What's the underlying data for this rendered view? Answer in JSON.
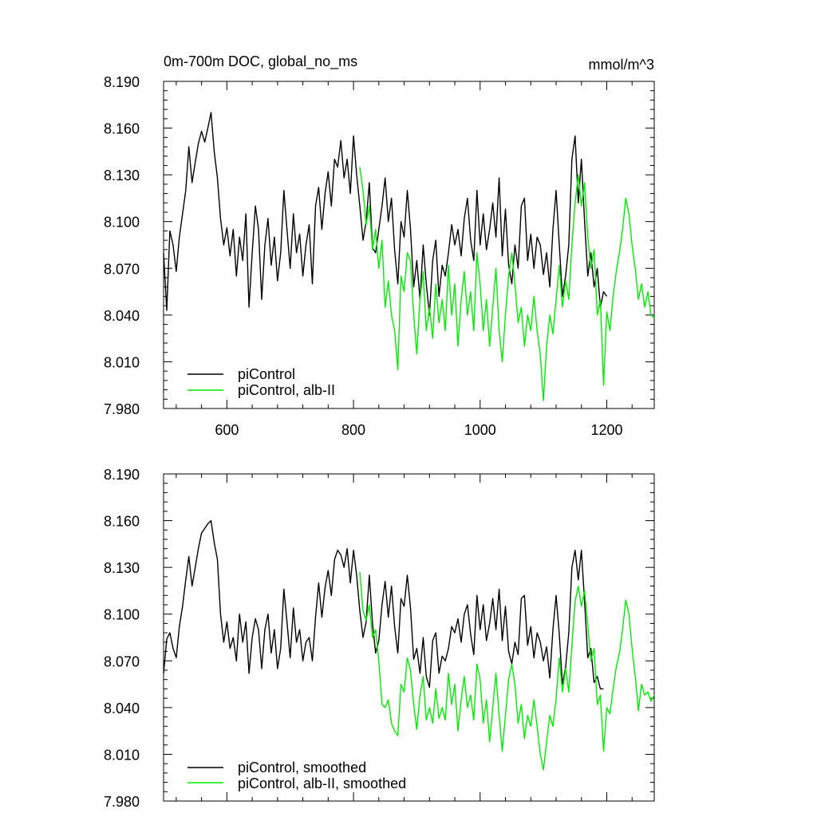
{
  "figure": {
    "title_left": "0m-700m DOC, global_no_ms",
    "title_right": "mmol/m^3"
  },
  "colors": {
    "piControl": "#000000",
    "alb_II": "#00ee00"
  },
  "chart_data": [
    {
      "type": "line",
      "panel": "top",
      "xlim": [
        500,
        1275
      ],
      "ylim": [
        7.98,
        8.19
      ],
      "x_ticks": [
        600,
        800,
        1000,
        1200
      ],
      "x_tick_labels": [
        "600",
        "800",
        "1000",
        "1200"
      ],
      "y_ticks": [
        7.98,
        8.01,
        8.04,
        8.07,
        8.1,
        8.13,
        8.16,
        8.19
      ],
      "y_tick_labels": [
        "7.980",
        "8.010",
        "8.040",
        "8.070",
        "8.100",
        "8.130",
        "8.160",
        "8.190"
      ],
      "legend_location": "lower-left",
      "series": [
        {
          "name": "piControl",
          "color": "#000000",
          "x": [
            500,
            505,
            510,
            515,
            520,
            525,
            530,
            535,
            540,
            545,
            550,
            555,
            560,
            565,
            570,
            575,
            580,
            585,
            590,
            595,
            600,
            605,
            610,
            615,
            620,
            625,
            630,
            635,
            640,
            645,
            650,
            655,
            660,
            665,
            670,
            675,
            680,
            685,
            690,
            695,
            700,
            705,
            710,
            715,
            720,
            725,
            730,
            735,
            740,
            745,
            750,
            755,
            760,
            765,
            770,
            775,
            780,
            785,
            790,
            795,
            800,
            805,
            810,
            815,
            820,
            825,
            830,
            835,
            840,
            845,
            850,
            855,
            860,
            865,
            870,
            875,
            880,
            885,
            890,
            895,
            900,
            905,
            910,
            915,
            920,
            925,
            930,
            935,
            940,
            945,
            950,
            955,
            960,
            965,
            970,
            975,
            980,
            985,
            990,
            995,
            1000,
            1005,
            1010,
            1015,
            1020,
            1025,
            1030,
            1035,
            1040,
            1045,
            1050,
            1055,
            1060,
            1065,
            1070,
            1075,
            1080,
            1085,
            1090,
            1095,
            1100,
            1105,
            1110,
            1115,
            1120,
            1125,
            1130,
            1135,
            1140,
            1145,
            1150,
            1155,
            1160,
            1165,
            1170,
            1175,
            1180,
            1185,
            1190,
            1195,
            1200
          ],
          "y": [
            8.08,
            8.043,
            8.094,
            8.085,
            8.068,
            8.09,
            8.105,
            8.12,
            8.148,
            8.125,
            8.138,
            8.15,
            8.158,
            8.151,
            8.16,
            8.17,
            8.145,
            8.128,
            8.102,
            8.085,
            8.096,
            8.078,
            8.095,
            8.065,
            8.09,
            8.075,
            8.105,
            8.045,
            8.08,
            8.11,
            8.095,
            8.05,
            8.085,
            8.102,
            8.072,
            8.09,
            8.062,
            8.08,
            8.12,
            8.095,
            8.07,
            8.105,
            8.08,
            8.092,
            8.065,
            8.085,
            8.098,
            8.06,
            8.11,
            8.122,
            8.095,
            8.118,
            8.132,
            8.11,
            8.14,
            8.135,
            8.152,
            8.128,
            8.14,
            8.118,
            8.155,
            8.13,
            8.11,
            8.088,
            8.1,
            8.125,
            8.083,
            8.08,
            8.095,
            8.11,
            8.128,
            8.1,
            8.115,
            8.082,
            8.06,
            8.1,
            8.09,
            8.12,
            8.095,
            8.058,
            8.075,
            8.05,
            8.085,
            8.06,
            8.04,
            8.075,
            8.088,
            8.052,
            8.072,
            8.065,
            8.08,
            8.098,
            8.085,
            8.095,
            8.078,
            8.102,
            8.115,
            8.088,
            8.075,
            8.12,
            8.085,
            8.105,
            8.082,
            8.095,
            8.112,
            8.09,
            8.128,
            8.078,
            8.108,
            8.072,
            8.06,
            8.085,
            8.07,
            8.11,
            8.115,
            8.075,
            8.092,
            8.07,
            8.09,
            8.085,
            8.066,
            8.08,
            8.058,
            8.095,
            8.12,
            8.085,
            8.052,
            8.065,
            8.085,
            8.14,
            8.155,
            8.112,
            8.14,
            8.1,
            8.065,
            8.08,
            8.058,
            8.07,
            8.045,
            8.055,
            8.052
          ]
        },
        {
          "name": "piControl, alb-II",
          "color": "#00ee00",
          "x": [
            810,
            815,
            820,
            825,
            830,
            835,
            840,
            845,
            850,
            855,
            860,
            865,
            870,
            875,
            880,
            885,
            890,
            895,
            900,
            905,
            910,
            915,
            920,
            925,
            930,
            935,
            940,
            945,
            950,
            955,
            960,
            965,
            970,
            975,
            980,
            985,
            990,
            995,
            1000,
            1005,
            1010,
            1015,
            1020,
            1025,
            1030,
            1035,
            1040,
            1045,
            1050,
            1055,
            1060,
            1065,
            1070,
            1075,
            1080,
            1085,
            1090,
            1095,
            1100,
            1105,
            1110,
            1115,
            1120,
            1125,
            1130,
            1135,
            1140,
            1145,
            1150,
            1155,
            1160,
            1165,
            1170,
            1175,
            1180,
            1185,
            1190,
            1195,
            1200,
            1205,
            1210,
            1215,
            1220,
            1225,
            1230,
            1235,
            1240,
            1245,
            1250,
            1255,
            1260,
            1265,
            1270,
            1275
          ],
          "y": [
            8.135,
            8.12,
            8.098,
            8.11,
            8.082,
            8.095,
            8.07,
            8.088,
            8.045,
            8.062,
            8.04,
            8.03,
            8.005,
            8.065,
            8.055,
            8.08,
            8.075,
            8.04,
            8.015,
            8.05,
            8.068,
            8.03,
            8.045,
            8.025,
            8.06,
            8.035,
            8.05,
            8.03,
            8.072,
            8.04,
            8.06,
            8.02,
            8.05,
            8.068,
            8.04,
            8.055,
            8.03,
            8.08,
            8.06,
            8.03,
            8.05,
            8.02,
            8.045,
            8.07,
            8.03,
            8.01,
            8.04,
            8.065,
            8.08,
            8.06,
            8.035,
            8.045,
            8.02,
            8.04,
            8.03,
            8.052,
            8.03,
            8.015,
            7.985,
            8.02,
            8.04,
            8.028,
            8.05,
            8.072,
            8.045,
            8.062,
            8.05,
            8.085,
            8.112,
            8.13,
            8.11,
            8.125,
            8.09,
            8.07,
            8.082,
            8.04,
            8.05,
            7.995,
            8.042,
            8.03,
            8.052,
            8.068,
            8.08,
            8.095,
            8.115,
            8.105,
            8.085,
            8.07,
            8.05,
            8.06,
            8.045,
            8.055,
            8.04,
            8.038
          ]
        }
      ],
      "legend": [
        "piControl",
        "piControl, alb-II"
      ]
    },
    {
      "type": "line",
      "panel": "bottom",
      "xlim": [
        500,
        1275
      ],
      "ylim": [
        7.98,
        8.19
      ],
      "x_ticks": [
        600,
        800,
        1000,
        1200
      ],
      "y_ticks": [
        7.98,
        8.01,
        8.04,
        8.07,
        8.1,
        8.13,
        8.16,
        8.19
      ],
      "y_tick_labels": [
        "7.980",
        "8.010",
        "8.040",
        "8.070",
        "8.100",
        "8.130",
        "8.160",
        "8.190"
      ],
      "legend_location": "lower-left",
      "series": [
        {
          "name": "piControl, smoothed",
          "color": "#000000",
          "x": [
            500,
            505,
            510,
            515,
            520,
            525,
            530,
            535,
            540,
            545,
            550,
            555,
            560,
            565,
            570,
            575,
            580,
            585,
            590,
            595,
            600,
            605,
            610,
            615,
            620,
            625,
            630,
            635,
            640,
            645,
            650,
            655,
            660,
            665,
            670,
            675,
            680,
            685,
            690,
            695,
            700,
            705,
            710,
            715,
            720,
            725,
            730,
            735,
            740,
            745,
            750,
            755,
            760,
            765,
            770,
            775,
            780,
            785,
            790,
            795,
            800,
            805,
            810,
            815,
            820,
            825,
            830,
            835,
            840,
            845,
            850,
            855,
            860,
            865,
            870,
            875,
            880,
            885,
            890,
            895,
            900,
            905,
            910,
            915,
            920,
            925,
            930,
            935,
            940,
            945,
            950,
            955,
            960,
            965,
            970,
            975,
            980,
            985,
            990,
            995,
            1000,
            1005,
            1010,
            1015,
            1020,
            1025,
            1030,
            1035,
            1040,
            1045,
            1050,
            1055,
            1060,
            1065,
            1070,
            1075,
            1080,
            1085,
            1090,
            1095,
            1100,
            1105,
            1110,
            1115,
            1120,
            1125,
            1130,
            1135,
            1140,
            1145,
            1150,
            1155,
            1160,
            1165,
            1170,
            1175,
            1180,
            1185,
            1190,
            1195
          ],
          "y": [
            8.062,
            8.084,
            8.088,
            8.078,
            8.072,
            8.092,
            8.105,
            8.122,
            8.137,
            8.118,
            8.13,
            8.142,
            8.152,
            8.155,
            8.158,
            8.16,
            8.146,
            8.135,
            8.1,
            8.082,
            8.095,
            8.078,
            8.085,
            8.07,
            8.1,
            8.082,
            8.095,
            8.062,
            8.085,
            8.097,
            8.09,
            8.065,
            8.09,
            8.1,
            8.075,
            8.09,
            8.065,
            8.078,
            8.116,
            8.095,
            8.072,
            8.104,
            8.082,
            8.09,
            8.07,
            8.082,
            8.085,
            8.07,
            8.098,
            8.12,
            8.098,
            8.117,
            8.128,
            8.112,
            8.135,
            8.141,
            8.138,
            8.13,
            8.142,
            8.12,
            8.141,
            8.125,
            8.102,
            8.085,
            8.095,
            8.125,
            8.094,
            8.075,
            8.083,
            8.106,
            8.121,
            8.098,
            8.118,
            8.092,
            8.075,
            8.11,
            8.105,
            8.125,
            8.104,
            8.071,
            8.078,
            8.062,
            8.085,
            8.06,
            8.053,
            8.083,
            8.088,
            8.062,
            8.073,
            8.07,
            8.078,
            8.092,
            8.088,
            8.097,
            8.082,
            8.1,
            8.106,
            8.087,
            8.074,
            8.112,
            8.09,
            8.106,
            8.083,
            8.094,
            8.11,
            8.09,
            8.116,
            8.083,
            8.105,
            8.076,
            8.068,
            8.082,
            8.074,
            8.11,
            8.112,
            8.08,
            8.092,
            8.072,
            8.088,
            8.082,
            8.07,
            8.079,
            8.059,
            8.09,
            8.112,
            8.087,
            8.055,
            8.066,
            8.088,
            8.13,
            8.141,
            8.122,
            8.141,
            8.108,
            8.072,
            8.078,
            8.056,
            8.06,
            8.052,
            8.052
          ]
        },
        {
          "name": "piControl, alb-II, smoothed",
          "color": "#00ee00",
          "x": [
            810,
            815,
            820,
            825,
            830,
            835,
            840,
            845,
            850,
            855,
            860,
            865,
            870,
            875,
            880,
            885,
            890,
            895,
            900,
            905,
            910,
            915,
            920,
            925,
            930,
            935,
            940,
            945,
            950,
            955,
            960,
            965,
            970,
            975,
            980,
            985,
            990,
            995,
            1000,
            1005,
            1010,
            1015,
            1020,
            1025,
            1030,
            1035,
            1040,
            1045,
            1050,
            1055,
            1060,
            1065,
            1070,
            1075,
            1080,
            1085,
            1090,
            1095,
            1100,
            1105,
            1110,
            1115,
            1120,
            1125,
            1130,
            1135,
            1140,
            1145,
            1150,
            1155,
            1160,
            1165,
            1170,
            1175,
            1180,
            1185,
            1190,
            1195,
            1200,
            1205,
            1210,
            1215,
            1220,
            1225,
            1230,
            1235,
            1240,
            1245,
            1250,
            1255,
            1260,
            1265,
            1270,
            1275
          ],
          "y": [
            8.127,
            8.102,
            8.096,
            8.106,
            8.085,
            8.09,
            8.07,
            8.042,
            8.04,
            8.045,
            8.03,
            8.025,
            8.022,
            8.055,
            8.05,
            8.072,
            8.064,
            8.042,
            8.026,
            8.048,
            8.06,
            8.032,
            8.04,
            8.03,
            8.052,
            8.033,
            8.04,
            8.032,
            8.062,
            8.042,
            8.055,
            8.025,
            8.045,
            8.06,
            8.04,
            8.048,
            8.032,
            8.068,
            8.058,
            8.03,
            8.045,
            8.018,
            8.04,
            8.062,
            8.035,
            8.012,
            8.035,
            8.058,
            8.068,
            8.055,
            8.03,
            8.042,
            8.02,
            8.035,
            8.028,
            8.045,
            8.028,
            8.01,
            8.0,
            8.018,
            8.035,
            8.028,
            8.046,
            8.072,
            8.05,
            8.065,
            8.05,
            8.08,
            8.108,
            8.118,
            8.105,
            8.115,
            8.093,
            8.07,
            8.078,
            8.042,
            8.048,
            8.012,
            8.04,
            8.036,
            8.052,
            8.066,
            8.075,
            8.09,
            8.109,
            8.1,
            8.078,
            8.06,
            8.038,
            8.055,
            8.048,
            8.05,
            8.044,
            8.048
          ]
        }
      ],
      "legend": [
        "piControl, smoothed",
        "piControl, alb-II, smoothed"
      ]
    }
  ]
}
